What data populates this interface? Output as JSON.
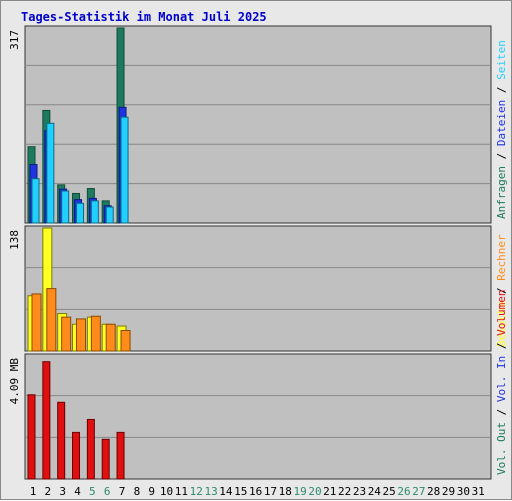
{
  "chart_data": {
    "title": "Tages-Statistik im Monat Juli 2025",
    "type": "bar",
    "x_categories": [
      "1",
      "2",
      "3",
      "4",
      "5",
      "6",
      "7",
      "8",
      "9",
      "10",
      "11",
      "12",
      "13",
      "14",
      "15",
      "16",
      "17",
      "18",
      "19",
      "20",
      "21",
      "22",
      "23",
      "24",
      "25",
      "26",
      "27",
      "28",
      "29",
      "30",
      "31"
    ],
    "weekend_days": [
      "5",
      "6",
      "12",
      "13",
      "19",
      "20",
      "26",
      "27"
    ],
    "colors": {
      "title": "#0000cc",
      "weekday": "#000000",
      "weekend": "#2d8a6e",
      "anfragen": "#1e7a5e",
      "dateien": "#1f33e0",
      "seiten": "#22d0ff",
      "besuche": "#ffff22",
      "rechner": "#ff8c1a",
      "volumen": "#e01010",
      "panel_bg": "#c0c0c0",
      "grid": "#888888"
    },
    "panels": [
      {
        "id": "requests",
        "max_label": "317",
        "max_value": 317,
        "legend": [
          {
            "text": "Anfragen",
            "color_key": "anfragen"
          },
          {
            "text": " / ",
            "color_key": "sep"
          },
          {
            "text": "Dateien",
            "color_key": "dateien"
          },
          {
            "text": " / ",
            "color_key": "sep"
          },
          {
            "text": "Seiten",
            "color_key": "seiten"
          }
        ],
        "series": [
          {
            "name": "Anfragen",
            "color_key": "anfragen",
            "values": [
              124,
              183,
              62,
              48,
              56,
              36,
              317
            ]
          },
          {
            "name": "Dateien",
            "color_key": "dateien",
            "values": [
              95,
              150,
              55,
              38,
              40,
              28,
              188
            ]
          },
          {
            "name": "Seiten",
            "color_key": "seiten",
            "values": [
              72,
              162,
              52,
              32,
              36,
              26,
              172
            ]
          }
        ]
      },
      {
        "id": "visits",
        "max_label": "138",
        "max_value": 138,
        "legend": [
          {
            "text": "Besuche",
            "color_key": "besuche"
          },
          {
            "text": " / ",
            "color_key": "sep"
          },
          {
            "text": "Rechner",
            "color_key": "rechner"
          }
        ],
        "series": [
          {
            "name": "Besuche",
            "color_key": "besuche",
            "values": [
              62,
              138,
              42,
              30,
              38,
              30,
              28
            ]
          },
          {
            "name": "Rechner",
            "color_key": "rechner",
            "values": [
              64,
              70,
              38,
              36,
              39,
              30,
              23
            ]
          }
        ]
      },
      {
        "id": "volume",
        "max_label": "4.09 MB",
        "max_value": 4.09,
        "legend": [
          {
            "text": "Vol. Out",
            "color_key": "anfragen"
          },
          {
            "text": " / ",
            "color_key": "sep"
          },
          {
            "text": "Vol. In",
            "color_key": "dateien"
          },
          {
            "text": " / ",
            "color_key": "sep"
          },
          {
            "text": "Volumen",
            "color_key": "volumen"
          }
        ],
        "series": [
          {
            "name": "Volumen",
            "color_key": "volumen",
            "values": [
              2.8,
              3.9,
              2.55,
              1.55,
              1.98,
              1.32,
              1.55
            ]
          }
        ]
      }
    ]
  }
}
